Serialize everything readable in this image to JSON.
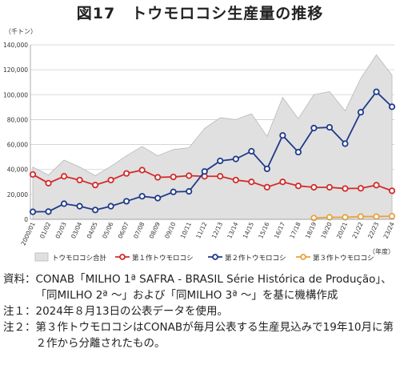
{
  "title": "図17　トウモロコシ生産量の推移",
  "chart_data": {
    "type": "area+line",
    "y_unit": "（千トン）",
    "x_unit": "（年度）",
    "ylim": [
      0,
      140000
    ],
    "y_ticks": [
      0,
      20000,
      40000,
      60000,
      80000,
      100000,
      120000,
      140000
    ],
    "y_tick_labels": [
      "0",
      "20,000",
      "40,000",
      "60,000",
      "80,000",
      "100,000",
      "120,000",
      "140,000"
    ],
    "grid": true,
    "legend_position": "bottom",
    "categories": [
      "2000/01",
      "01/02",
      "02/03",
      "03/04",
      "04/05",
      "05/06",
      "06/07",
      "07/08",
      "08/09",
      "09/10",
      "10/11",
      "11/12",
      "12/13",
      "13/14",
      "14/15",
      "15/16",
      "16/17",
      "17/18",
      "18/19",
      "19/20",
      "20/21",
      "21/22",
      "22/23",
      "23/24"
    ],
    "series": [
      {
        "name": "トウモロコシ合計",
        "type": "area",
        "color": "#e0e0e0",
        "values": [
          42000,
          35500,
          47500,
          42000,
          35000,
          42500,
          51000,
          58500,
          51000,
          56000,
          57400,
          72900,
          81500,
          80000,
          84700,
          66500,
          97800,
          80800,
          100000,
          102500,
          87100,
          113100,
          131900,
          115700
        ]
      },
      {
        "name": "第１作トウモロコシ",
        "type": "line",
        "color": "#d22b2b",
        "values": [
          36000,
          29000,
          34500,
          31500,
          27500,
          31500,
          36800,
          39500,
          33700,
          34000,
          35000,
          34500,
          34500,
          31500,
          30000,
          25800,
          30000,
          26800,
          25700,
          25700,
          24700,
          24900,
          27400,
          22900
        ]
      },
      {
        "name": "第２作トウモロコシ",
        "type": "line",
        "color": "#1f3a8a",
        "values": [
          6000,
          6200,
          12500,
          10500,
          7500,
          10500,
          14500,
          18500,
          17000,
          22000,
          22400,
          38400,
          46900,
          48400,
          54600,
          40500,
          67300,
          53900,
          73200,
          73800,
          60700,
          85900,
          102300,
          90300
        ]
      },
      {
        "name": "第３作トウモロコシ",
        "type": "line",
        "color": "#e8a33a",
        "start_index": 18,
        "values": [
          null,
          null,
          null,
          null,
          null,
          null,
          null,
          null,
          null,
          null,
          null,
          null,
          null,
          null,
          null,
          null,
          null,
          null,
          1000,
          1600,
          1600,
          2200,
          2200,
          2500
        ]
      }
    ]
  },
  "notes": [
    {
      "label": "資料：",
      "text": "CONAB「MILHO 1ª SAFRA - BRASIL Série Histórica de Produção」、「同MILHO 2ª ～」および「同MILHO 3ª ～」を基に機構作成"
    },
    {
      "label": "注１：",
      "text": "2024年８月13日の公表データを使用。"
    },
    {
      "label": "注２：",
      "text": "第３作トウモロコシはCONABが毎月公表する生産見込みで19年10月に第２作から分離されたもの。"
    }
  ]
}
